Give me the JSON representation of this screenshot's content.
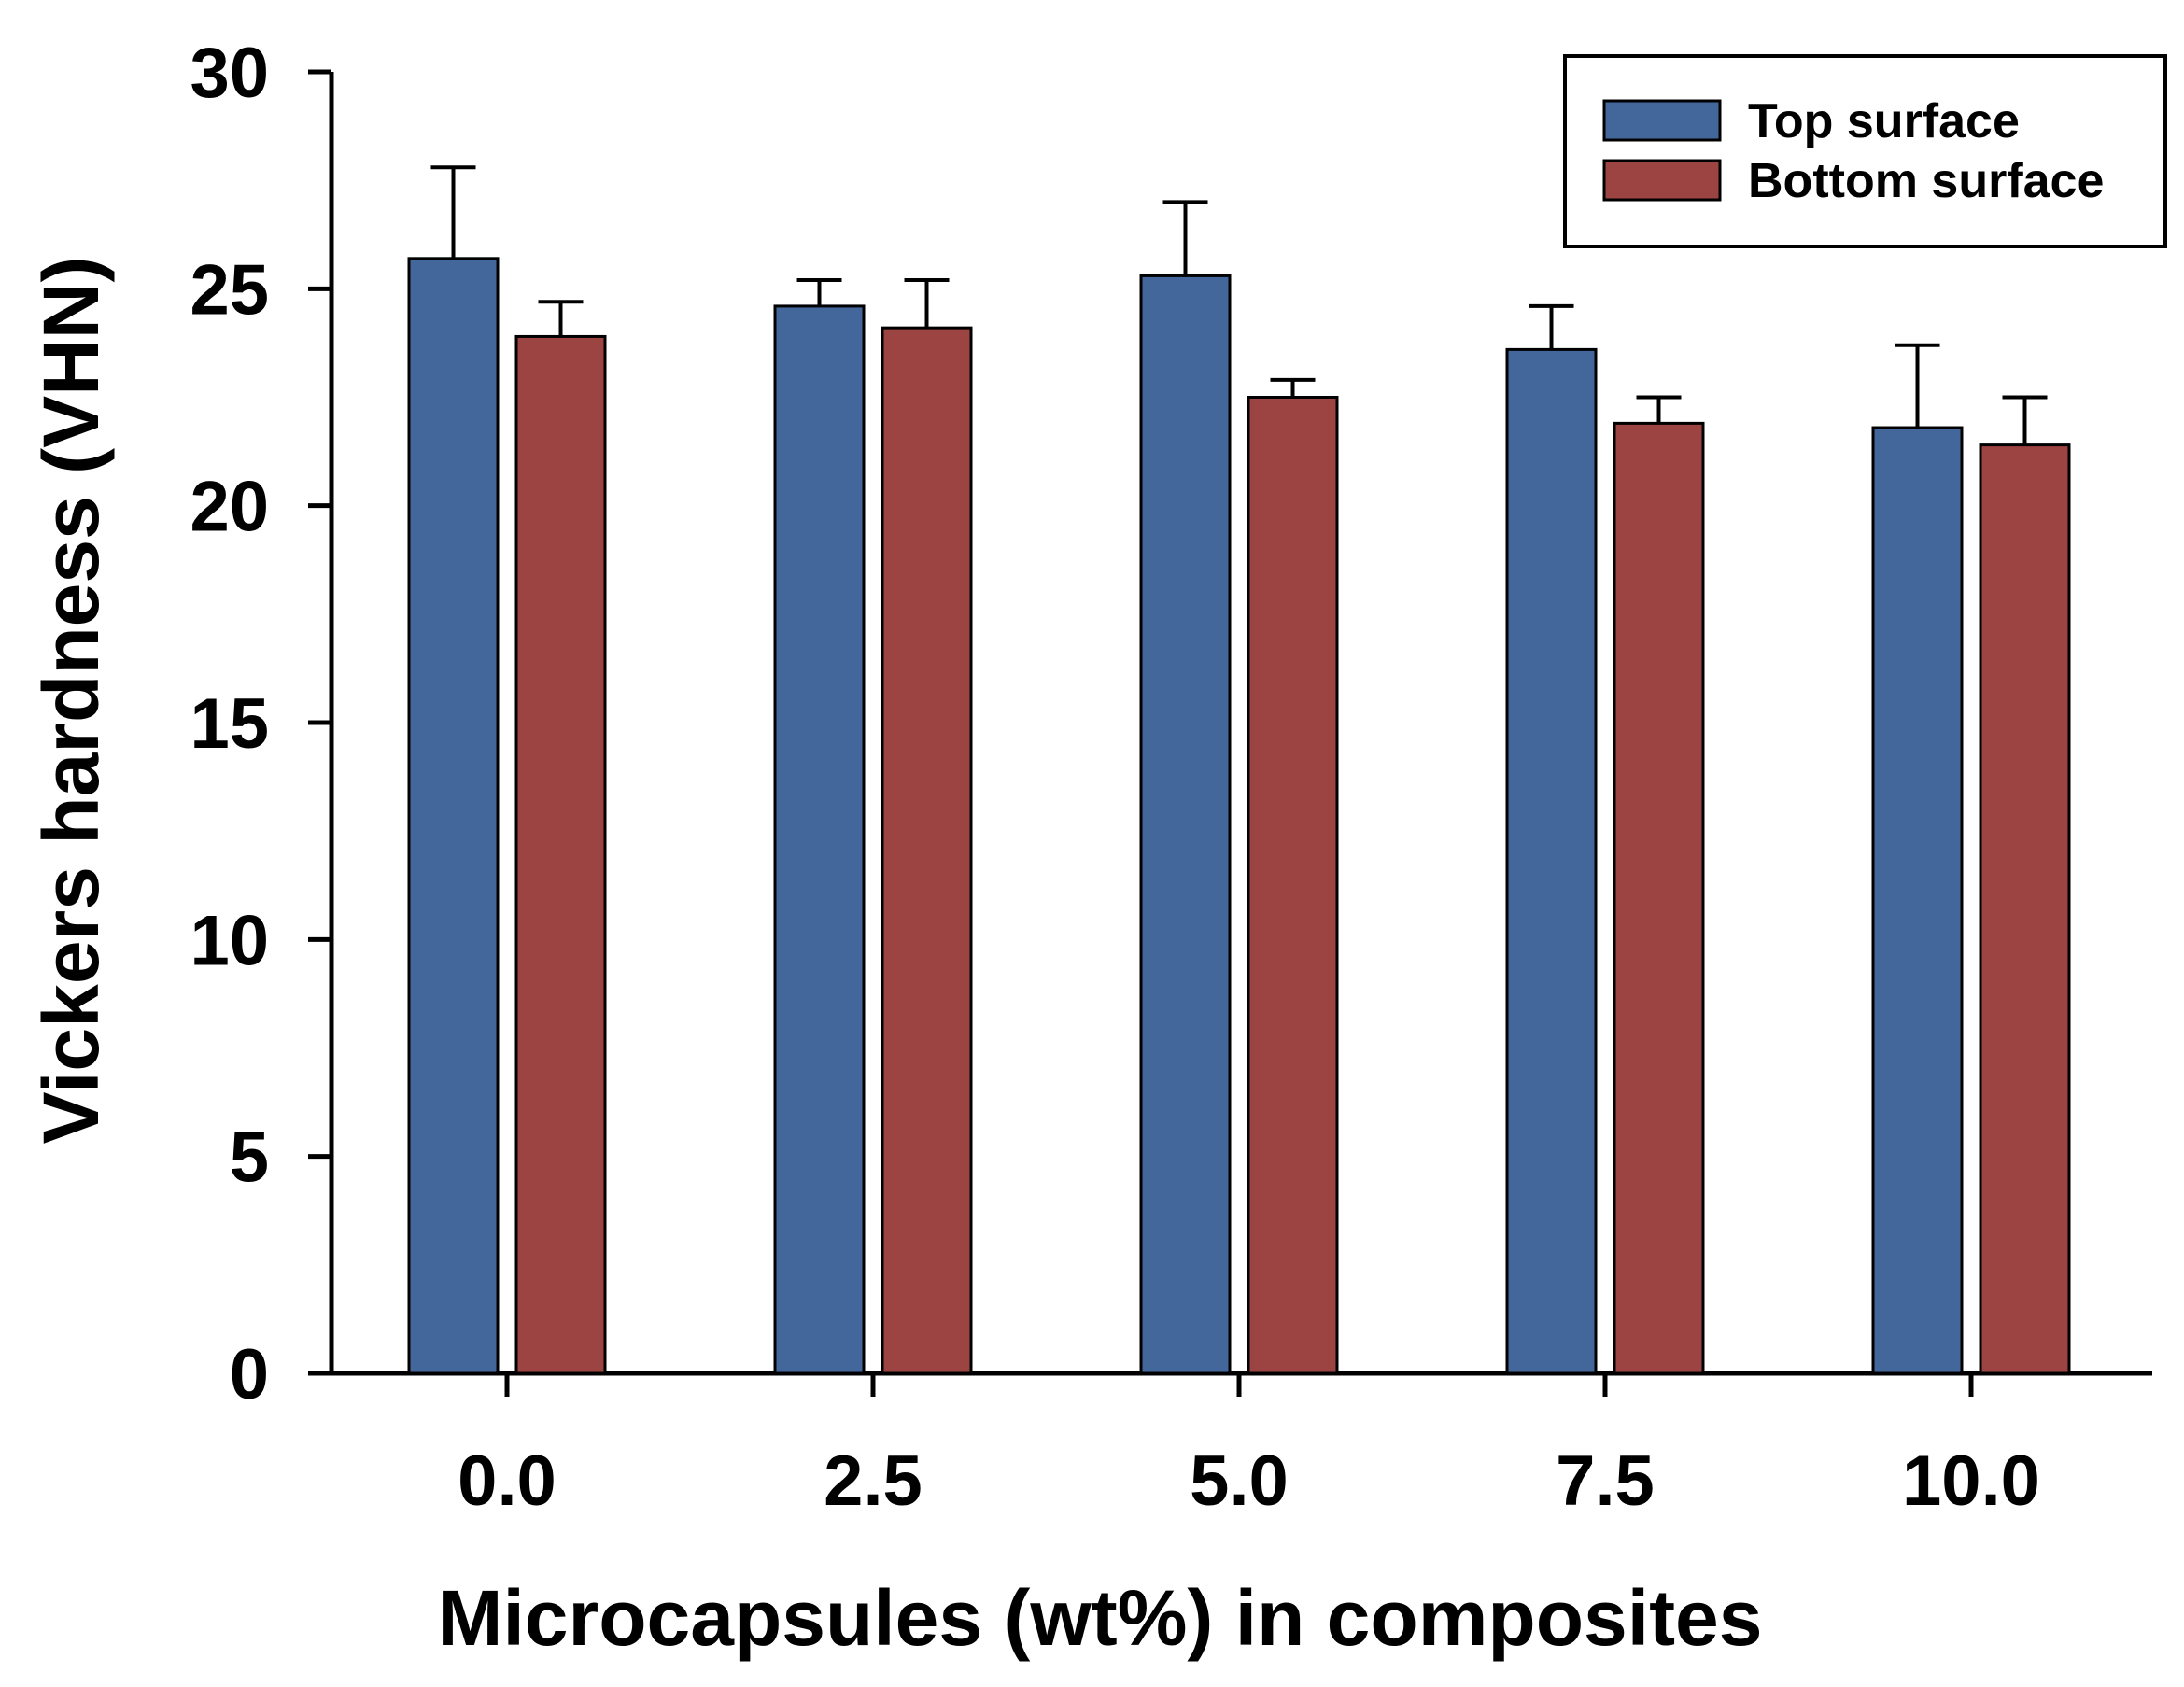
{
  "chart_data": {
    "type": "bar",
    "title": "",
    "xlabel": "Microcapsules (wt%) in composites",
    "ylabel": "Vickers hardness (VHN)",
    "categories": [
      "0.0",
      "2.5",
      "5.0",
      "7.5",
      "10.0"
    ],
    "ylim": [
      0,
      30
    ],
    "yticks": [
      0,
      5,
      10,
      15,
      20,
      25,
      30
    ],
    "grid": false,
    "legend_position": "top-right",
    "series": [
      {
        "name": "Top surface",
        "color": "#44679b",
        "values": [
          25.7,
          24.6,
          25.3,
          23.6,
          21.8
        ],
        "errors": [
          2.1,
          0.6,
          1.7,
          1.0,
          1.9
        ]
      },
      {
        "name": "Bottom surface",
        "color": "#9b4441",
        "values": [
          23.9,
          24.1,
          22.5,
          21.9,
          21.4
        ],
        "errors": [
          0.8,
          1.1,
          0.4,
          0.6,
          1.1
        ]
      }
    ]
  }
}
